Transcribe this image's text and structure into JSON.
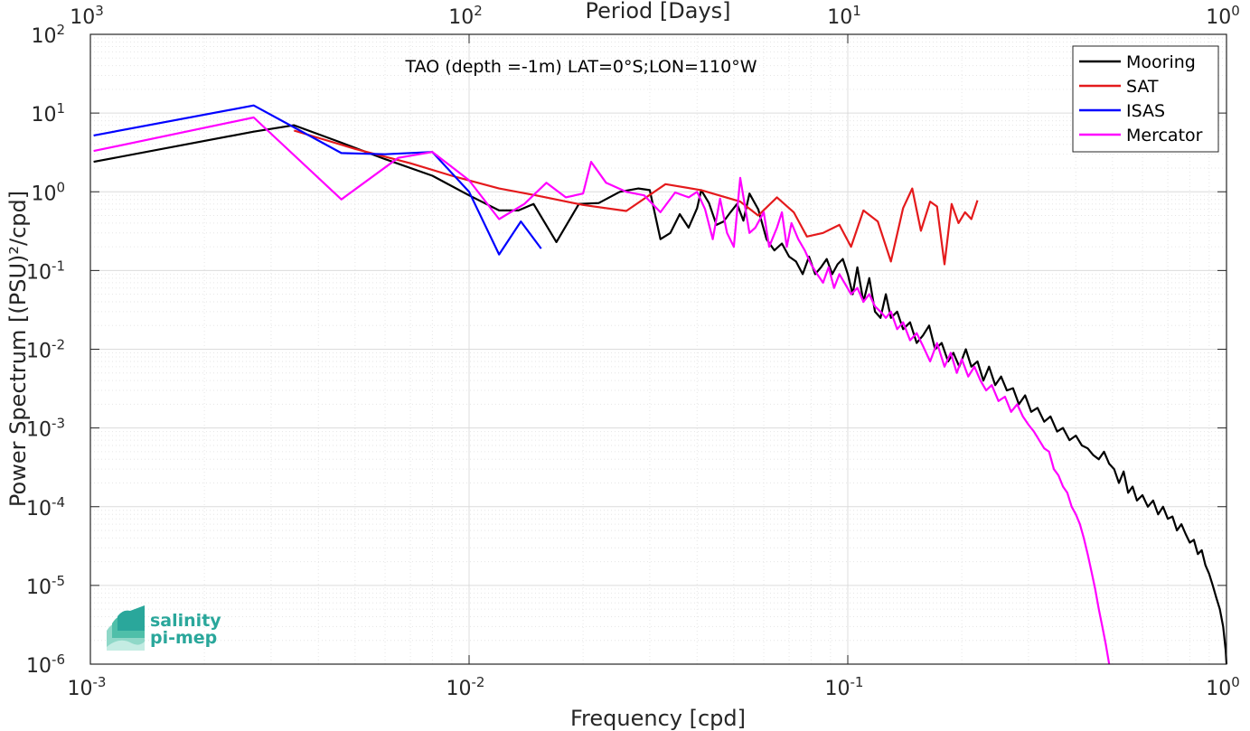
{
  "chart_data": {
    "type": "line",
    "annotation": "TAO (depth =-1m) LAT=0°S;LON=110°W",
    "xlabel": "Frequency [cpd]",
    "ylabel": "Power Spectrum [(PSU)²/cpd]",
    "x2label": "Period [Days]",
    "x_scale": "log",
    "y_scale": "log",
    "xlim": [
      0.001,
      1
    ],
    "ylim": [
      1e-06,
      100
    ],
    "grid": true,
    "legend_position": "top-right",
    "x_ticks": [
      {
        "value": 0.001,
        "base": "10",
        "exp": "-3"
      },
      {
        "value": 0.01,
        "base": "10",
        "exp": "-2"
      },
      {
        "value": 0.1,
        "base": "10",
        "exp": "-1"
      },
      {
        "value": 1,
        "base": "10",
        "exp": "0"
      }
    ],
    "x2_ticks": [
      {
        "value": 0.001,
        "base": "10",
        "exp": "3"
      },
      {
        "value": 0.01,
        "base": "10",
        "exp": "2"
      },
      {
        "value": 0.1,
        "base": "10",
        "exp": "1"
      },
      {
        "value": 1,
        "base": "10",
        "exp": "0"
      }
    ],
    "y_ticks": [
      {
        "value": 1e-06,
        "base": "10",
        "exp": "-6"
      },
      {
        "value": 1e-05,
        "base": "10",
        "exp": "-5"
      },
      {
        "value": 0.0001,
        "base": "10",
        "exp": "-4"
      },
      {
        "value": 0.001,
        "base": "10",
        "exp": "-3"
      },
      {
        "value": 0.01,
        "base": "10",
        "exp": "-2"
      },
      {
        "value": 0.1,
        "base": "10",
        "exp": "-1"
      },
      {
        "value": 1,
        "base": "10",
        "exp": "0"
      },
      {
        "value": 10,
        "base": "10",
        "exp": "1"
      },
      {
        "value": 100,
        "base": "10",
        "exp": "2"
      }
    ],
    "series": [
      {
        "name": "Mooring",
        "color": "#000000",
        "points": [
          [
            0.00102,
            2.4
          ],
          [
            0.0027,
            5.8
          ],
          [
            0.00345,
            7.0
          ],
          [
            0.0046,
            4.2
          ],
          [
            0.006,
            2.6
          ],
          [
            0.008,
            1.6
          ],
          [
            0.01,
            0.9
          ],
          [
            0.012,
            0.58
          ],
          [
            0.0135,
            0.58
          ],
          [
            0.0148,
            0.7
          ],
          [
            0.017,
            0.23
          ],
          [
            0.0195,
            0.7
          ],
          [
            0.022,
            0.72
          ],
          [
            0.025,
            1.0
          ],
          [
            0.028,
            1.1
          ],
          [
            0.03,
            1.05
          ],
          [
            0.032,
            0.25
          ],
          [
            0.034,
            0.3
          ],
          [
            0.036,
            0.52
          ],
          [
            0.038,
            0.35
          ],
          [
            0.04,
            0.62
          ],
          [
            0.041,
            1.05
          ],
          [
            0.043,
            0.72
          ],
          [
            0.045,
            0.38
          ],
          [
            0.047,
            0.42
          ],
          [
            0.049,
            0.55
          ],
          [
            0.051,
            0.7
          ],
          [
            0.053,
            0.43
          ],
          [
            0.055,
            0.95
          ],
          [
            0.058,
            0.6
          ],
          [
            0.061,
            0.25
          ],
          [
            0.064,
            0.18
          ],
          [
            0.067,
            0.22
          ],
          [
            0.07,
            0.15
          ],
          [
            0.073,
            0.13
          ],
          [
            0.076,
            0.09
          ],
          [
            0.079,
            0.15
          ],
          [
            0.082,
            0.09
          ],
          [
            0.085,
            0.11
          ],
          [
            0.088,
            0.14
          ],
          [
            0.091,
            0.09
          ],
          [
            0.094,
            0.12
          ],
          [
            0.097,
            0.14
          ],
          [
            0.1,
            0.09
          ],
          [
            0.103,
            0.05
          ],
          [
            0.106,
            0.11
          ],
          [
            0.11,
            0.04
          ],
          [
            0.114,
            0.08
          ],
          [
            0.118,
            0.03
          ],
          [
            0.122,
            0.025
          ],
          [
            0.126,
            0.05
          ],
          [
            0.13,
            0.025
          ],
          [
            0.135,
            0.03
          ],
          [
            0.14,
            0.018
          ],
          [
            0.146,
            0.022
          ],
          [
            0.152,
            0.012
          ],
          [
            0.158,
            0.015
          ],
          [
            0.164,
            0.02
          ],
          [
            0.17,
            0.01
          ],
          [
            0.177,
            0.012
          ],
          [
            0.184,
            0.007
          ],
          [
            0.19,
            0.009
          ],
          [
            0.197,
            0.006
          ],
          [
            0.205,
            0.01
          ],
          [
            0.212,
            0.006
          ],
          [
            0.22,
            0.007
          ],
          [
            0.228,
            0.004
          ],
          [
            0.236,
            0.006
          ],
          [
            0.245,
            0.0035
          ],
          [
            0.254,
            0.0045
          ],
          [
            0.263,
            0.003
          ],
          [
            0.273,
            0.0032
          ],
          [
            0.283,
            0.002
          ],
          [
            0.294,
            0.0026
          ],
          [
            0.305,
            0.0016
          ],
          [
            0.317,
            0.0018
          ],
          [
            0.33,
            0.0012
          ],
          [
            0.343,
            0.0014
          ],
          [
            0.357,
            0.0009
          ],
          [
            0.37,
            0.001
          ],
          [
            0.385,
            0.0007
          ],
          [
            0.4,
            0.0008
          ],
          [
            0.415,
            0.0006
          ],
          [
            0.43,
            0.00055
          ],
          [
            0.445,
            0.00045
          ],
          [
            0.46,
            0.0004
          ],
          [
            0.475,
            0.0005
          ],
          [
            0.49,
            0.00035
          ],
          [
            0.505,
            0.0003
          ],
          [
            0.52,
            0.0002
          ],
          [
            0.535,
            0.00028
          ],
          [
            0.55,
            0.00015
          ],
          [
            0.565,
            0.00018
          ],
          [
            0.58,
            0.00012
          ],
          [
            0.6,
            0.00014
          ],
          [
            0.62,
            0.0001
          ],
          [
            0.64,
            0.00012
          ],
          [
            0.66,
            8e-05
          ],
          [
            0.68,
            0.0001
          ],
          [
            0.7,
            7e-05
          ],
          [
            0.72,
            7.5e-05
          ],
          [
            0.74,
            5e-05
          ],
          [
            0.76,
            6e-05
          ],
          [
            0.78,
            4.5e-05
          ],
          [
            0.8,
            3.5e-05
          ],
          [
            0.82,
            3.8e-05
          ],
          [
            0.84,
            2.5e-05
          ],
          [
            0.86,
            2.8e-05
          ],
          [
            0.88,
            1.8e-05
          ],
          [
            0.9,
            1.4e-05
          ],
          [
            0.92,
            1e-05
          ],
          [
            0.94,
            7e-06
          ],
          [
            0.96,
            5e-06
          ],
          [
            0.98,
            3e-06
          ],
          [
            0.995,
            1.5e-06
          ],
          [
            1.0,
            1e-06
          ]
        ]
      },
      {
        "name": "SAT",
        "color": "#e41a1c",
        "points": [
          [
            0.00345,
            6.0
          ],
          [
            0.005,
            3.5
          ],
          [
            0.007,
            2.3
          ],
          [
            0.009,
            1.6
          ],
          [
            0.012,
            1.1
          ],
          [
            0.015,
            0.9
          ],
          [
            0.02,
            0.68
          ],
          [
            0.026,
            0.57
          ],
          [
            0.033,
            1.25
          ],
          [
            0.041,
            1.05
          ],
          [
            0.052,
            0.75
          ],
          [
            0.058,
            0.5
          ],
          [
            0.065,
            0.85
          ],
          [
            0.072,
            0.55
          ],
          [
            0.078,
            0.27
          ],
          [
            0.086,
            0.3
          ],
          [
            0.095,
            0.38
          ],
          [
            0.102,
            0.2
          ],
          [
            0.11,
            0.58
          ],
          [
            0.12,
            0.42
          ],
          [
            0.13,
            0.13
          ],
          [
            0.14,
            0.62
          ],
          [
            0.148,
            1.1
          ],
          [
            0.156,
            0.32
          ],
          [
            0.165,
            0.75
          ],
          [
            0.172,
            0.65
          ],
          [
            0.18,
            0.12
          ],
          [
            0.188,
            0.7
          ],
          [
            0.196,
            0.4
          ],
          [
            0.204,
            0.55
          ],
          [
            0.212,
            0.45
          ],
          [
            0.22,
            0.78
          ]
        ]
      },
      {
        "name": "ISAS",
        "color": "#0000ff",
        "points": [
          [
            0.00102,
            5.2
          ],
          [
            0.0027,
            12.5
          ],
          [
            0.0046,
            3.1
          ],
          [
            0.006,
            3.0
          ],
          [
            0.008,
            3.2
          ],
          [
            0.01,
            1.0
          ],
          [
            0.012,
            0.16
          ],
          [
            0.0137,
            0.42
          ],
          [
            0.0155,
            0.19
          ]
        ]
      },
      {
        "name": "Mercator",
        "color": "#ff00ff",
        "points": [
          [
            0.00102,
            3.3
          ],
          [
            0.0027,
            8.8
          ],
          [
            0.0046,
            0.8
          ],
          [
            0.0065,
            2.7
          ],
          [
            0.008,
            3.2
          ],
          [
            0.01,
            1.4
          ],
          [
            0.012,
            0.45
          ],
          [
            0.014,
            0.7
          ],
          [
            0.016,
            1.3
          ],
          [
            0.018,
            0.85
          ],
          [
            0.02,
            0.95
          ],
          [
            0.021,
            2.4
          ],
          [
            0.023,
            1.3
          ],
          [
            0.026,
            1.0
          ],
          [
            0.029,
            0.9
          ],
          [
            0.032,
            0.55
          ],
          [
            0.035,
            0.98
          ],
          [
            0.038,
            0.85
          ],
          [
            0.04,
            1.0
          ],
          [
            0.042,
            0.6
          ],
          [
            0.044,
            0.25
          ],
          [
            0.046,
            0.82
          ],
          [
            0.048,
            0.3
          ],
          [
            0.05,
            0.2
          ],
          [
            0.052,
            1.5
          ],
          [
            0.055,
            0.3
          ],
          [
            0.057,
            0.35
          ],
          [
            0.06,
            0.55
          ],
          [
            0.062,
            0.2
          ],
          [
            0.065,
            0.35
          ],
          [
            0.067,
            0.55
          ],
          [
            0.069,
            0.2
          ],
          [
            0.071,
            0.4
          ],
          [
            0.074,
            0.25
          ],
          [
            0.077,
            0.18
          ],
          [
            0.08,
            0.12
          ],
          [
            0.083,
            0.09
          ],
          [
            0.086,
            0.07
          ],
          [
            0.089,
            0.11
          ],
          [
            0.092,
            0.06
          ],
          [
            0.095,
            0.09
          ],
          [
            0.098,
            0.07
          ],
          [
            0.102,
            0.05
          ],
          [
            0.106,
            0.06
          ],
          [
            0.11,
            0.04
          ],
          [
            0.114,
            0.05
          ],
          [
            0.118,
            0.035
          ],
          [
            0.122,
            0.03
          ],
          [
            0.126,
            0.025
          ],
          [
            0.13,
            0.03
          ],
          [
            0.135,
            0.018
          ],
          [
            0.14,
            0.022
          ],
          [
            0.146,
            0.013
          ],
          [
            0.152,
            0.016
          ],
          [
            0.158,
            0.011
          ],
          [
            0.165,
            0.007
          ],
          [
            0.172,
            0.012
          ],
          [
            0.18,
            0.006
          ],
          [
            0.187,
            0.009
          ],
          [
            0.194,
            0.005
          ],
          [
            0.2,
            0.0075
          ],
          [
            0.208,
            0.0045
          ],
          [
            0.216,
            0.006
          ],
          [
            0.224,
            0.004
          ],
          [
            0.232,
            0.003
          ],
          [
            0.24,
            0.0035
          ],
          [
            0.25,
            0.0022
          ],
          [
            0.26,
            0.0025
          ],
          [
            0.27,
            0.0016
          ],
          [
            0.28,
            0.002
          ],
          [
            0.29,
            0.0014
          ],
          [
            0.3,
            0.0011
          ],
          [
            0.31,
            0.0009
          ],
          [
            0.32,
            0.0007
          ],
          [
            0.33,
            0.00055
          ],
          [
            0.34,
            0.0005
          ],
          [
            0.35,
            0.0003
          ],
          [
            0.36,
            0.00025
          ],
          [
            0.37,
            0.00018
          ],
          [
            0.38,
            0.00015
          ],
          [
            0.39,
            0.0001
          ],
          [
            0.4,
            8e-05
          ],
          [
            0.41,
            6e-05
          ],
          [
            0.42,
            4e-05
          ],
          [
            0.43,
            2.5e-05
          ],
          [
            0.44,
            1.5e-05
          ],
          [
            0.45,
            9e-06
          ],
          [
            0.46,
            5e-06
          ],
          [
            0.47,
            3e-06
          ],
          [
            0.48,
            1.8e-06
          ],
          [
            0.49,
            1e-06
          ]
        ]
      }
    ]
  },
  "logo": {
    "line1": "salinity",
    "line2": "pi-mep"
  }
}
